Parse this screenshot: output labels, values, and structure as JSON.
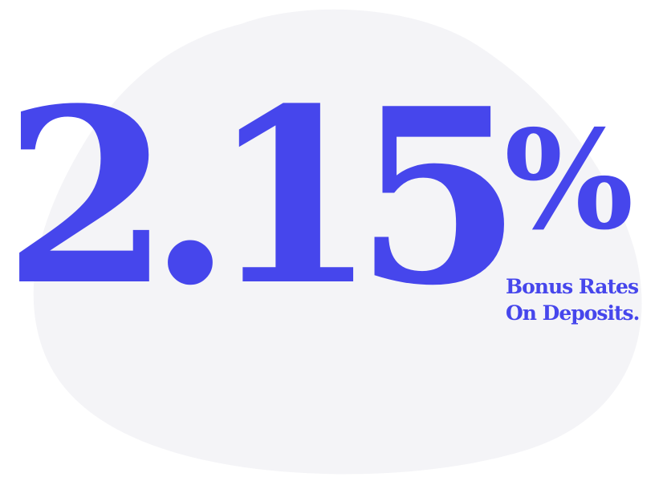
{
  "headline": {
    "rate": "2.15",
    "percent": "%"
  },
  "caption": {
    "line1": "Bonus Rates",
    "line2": "On Deposits."
  },
  "colors": {
    "accent": "#4646EC",
    "blob": "#F4F4F7",
    "background": "#FFFFFF"
  }
}
